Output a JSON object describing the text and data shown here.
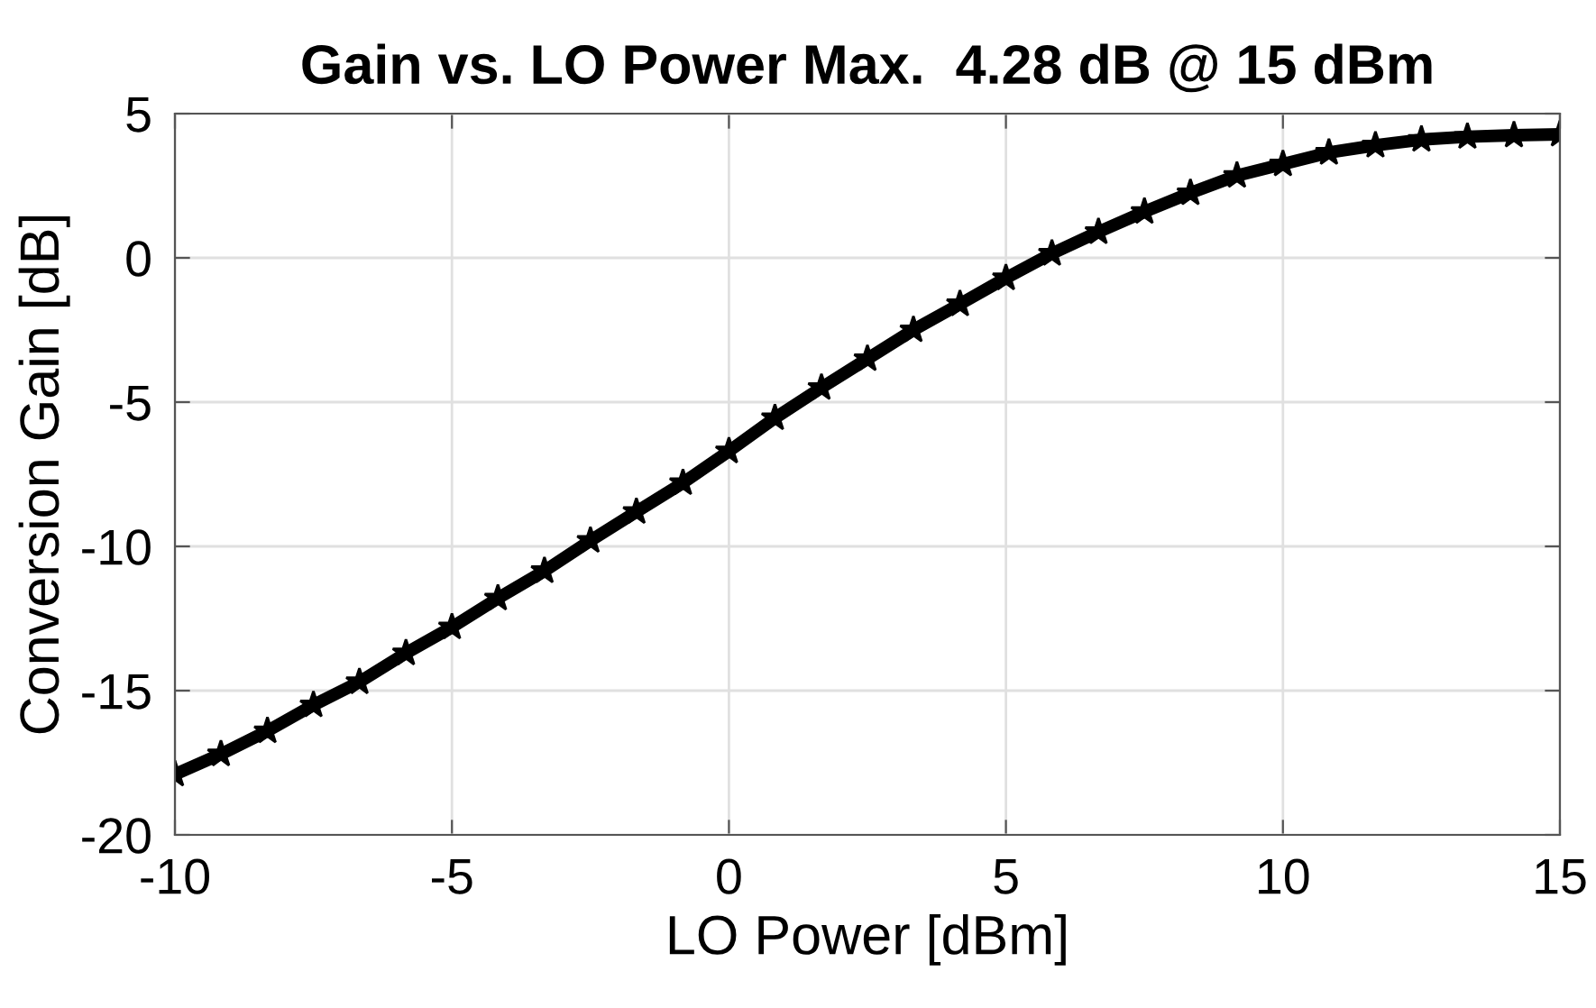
{
  "chart_data": {
    "type": "line",
    "title": "Gain vs. LO Power Max.  4.28 dB @ 15 dBm",
    "xlabel": "LO Power [dBm]",
    "ylabel": "Conversion Gain [dB]",
    "x": [
      -10,
      -9.17,
      -8.33,
      -7.5,
      -6.67,
      -5.83,
      -5,
      -4.17,
      -3.33,
      -2.5,
      -1.67,
      -0.83,
      0,
      0.83,
      1.67,
      2.5,
      3.33,
      4.17,
      5,
      5.83,
      6.67,
      7.5,
      8.33,
      9.17,
      10,
      10.83,
      11.67,
      12.5,
      13.33,
      14.17,
      15
    ],
    "series": [
      {
        "color": "#000000",
        "values": [
          -17.9,
          -17.2,
          -16.4,
          -15.5,
          -14.7,
          -13.7,
          -12.8,
          -11.8,
          -10.85,
          -9.8,
          -8.8,
          -7.8,
          -6.7,
          -5.55,
          -4.5,
          -3.5,
          -2.5,
          -1.6,
          -0.7,
          0.15,
          0.9,
          1.6,
          2.25,
          2.85,
          3.25,
          3.65,
          3.9,
          4.1,
          4.2,
          4.25,
          4.28
        ]
      }
    ],
    "xlim": [
      -10,
      15
    ],
    "xticks": [
      -10,
      -5,
      0,
      5,
      10,
      15
    ],
    "ylim": [
      -20,
      5
    ],
    "yticks": [
      -20,
      -15,
      -10,
      -5,
      0,
      5
    ],
    "grid": true,
    "marker": "star",
    "line_style": "solid"
  }
}
